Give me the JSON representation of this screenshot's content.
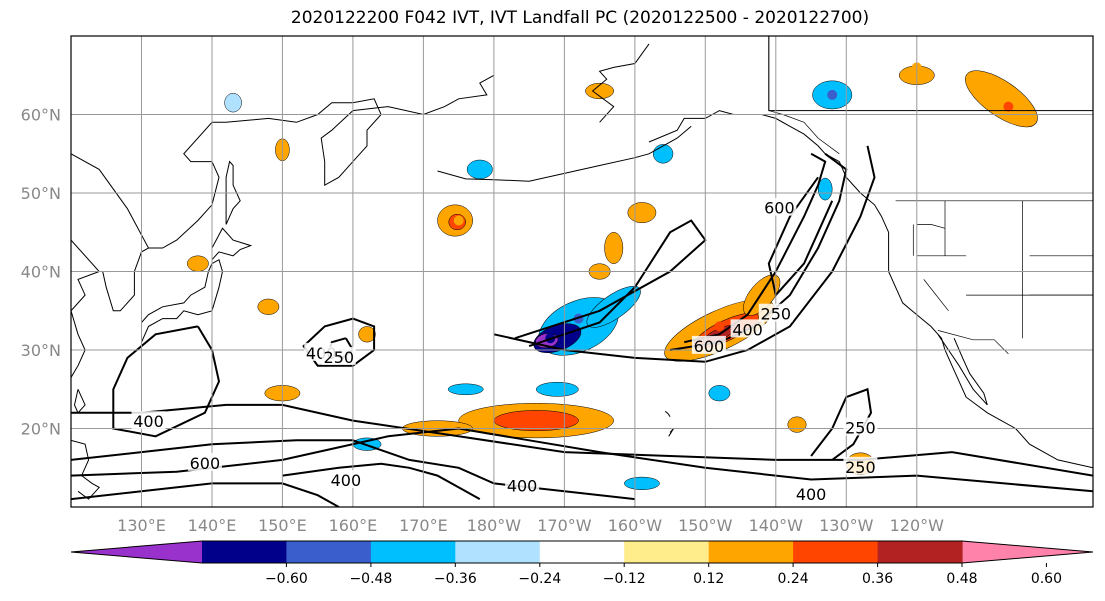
{
  "chart_data": {
    "type": "heatmap",
    "title": "2020122200 F042 IVT, IVT Landfall PC (2020122500 - 2020122700)",
    "map": {
      "lon_range": [
        120,
        265
      ],
      "lat_range": [
        10,
        70
      ],
      "lat_ticks": [
        {
          "lat": 60,
          "label": "60°N"
        },
        {
          "lat": 50,
          "label": "50°N"
        },
        {
          "lat": 40,
          "label": "40°N"
        },
        {
          "lat": 30,
          "label": "30°N"
        },
        {
          "lat": 20,
          "label": "20°N"
        }
      ],
      "lon_ticks": [
        {
          "lon": 130,
          "label": "130°E"
        },
        {
          "lon": 140,
          "label": "140°E"
        },
        {
          "lon": 150,
          "label": "150°E"
        },
        {
          "lon": 160,
          "label": "160°E"
        },
        {
          "lon": 170,
          "label": "170°E"
        },
        {
          "lon": 180,
          "label": "180°W"
        },
        {
          "lon": 190,
          "label": "170°W"
        },
        {
          "lon": 200,
          "label": "160°W"
        },
        {
          "lon": 210,
          "label": "150°W"
        },
        {
          "lon": 220,
          "label": "140°W"
        },
        {
          "lon": 230,
          "label": "130°W"
        },
        {
          "lon": 240,
          "label": "120°W"
        }
      ],
      "grid": true
    },
    "colorbar": {
      "orientation": "horizontal",
      "extend": "both",
      "levels": [
        -0.72,
        -0.6,
        -0.48,
        -0.36,
        -0.24,
        -0.12,
        0.12,
        0.24,
        0.36,
        0.48,
        0.6,
        0.72
      ],
      "colors": [
        "#9932cc",
        "#00008b",
        "#3a5fcd",
        "#00bfff",
        "#b0e2ff",
        "#ffffff",
        "#ffec8b",
        "#ffa500",
        "#ff4500",
        "#b22222",
        "#ff82ab"
      ],
      "tick_labels": [
        "-0.60",
        "-0.48",
        "-0.36",
        "-0.24",
        "-0.12",
        "0.12",
        "0.24",
        "0.36",
        "0.48",
        "0.60"
      ]
    },
    "contour_levels": [
      250,
      400,
      600
    ],
    "contour_labels": [
      {
        "text": "400",
        "lon": 155.5,
        "lat": 29.5
      },
      {
        "text": "250",
        "lon": 158,
        "lat": 29
      },
      {
        "text": "400",
        "lon": 131,
        "lat": 20.8
      },
      {
        "text": "600",
        "lon": 139,
        "lat": 15.5
      },
      {
        "text": "400",
        "lon": 159,
        "lat": 13.3
      },
      {
        "text": "400",
        "lon": 184,
        "lat": 12.6
      },
      {
        "text": "600",
        "lon": 210.5,
        "lat": 30.4
      },
      {
        "text": "400",
        "lon": 216,
        "lat": 32.5
      },
      {
        "text": "250",
        "lon": 220,
        "lat": 34.5
      },
      {
        "text": "600",
        "lon": 220.5,
        "lat": 48
      },
      {
        "text": "250",
        "lon": 232,
        "lat": 20
      },
      {
        "text": "250",
        "lon": 232,
        "lat": 15
      },
      {
        "text": "400",
        "lon": 225,
        "lat": 11.5
      }
    ],
    "pc_features": [
      {
        "value": -0.6,
        "lon": 188,
        "lat": 31.5
      },
      {
        "value": -0.4,
        "lon": 192,
        "lat": 34
      },
      {
        "value": 0.45,
        "lon": 212,
        "lat": 33
      },
      {
        "value": 0.4,
        "lon": 186,
        "lat": 21
      },
      {
        "value": 0.3,
        "lon": 175,
        "lat": 46.5
      },
      {
        "value": 0.35,
        "lon": 201,
        "lat": 47
      },
      {
        "value": 0.45,
        "lon": 253,
        "lat": 61
      },
      {
        "value": 0.3,
        "lon": 240,
        "lat": 66
      },
      {
        "value": -0.4,
        "lon": 228,
        "lat": 62.5
      },
      {
        "value": 0.3,
        "lon": 232,
        "lat": 15
      }
    ]
  }
}
